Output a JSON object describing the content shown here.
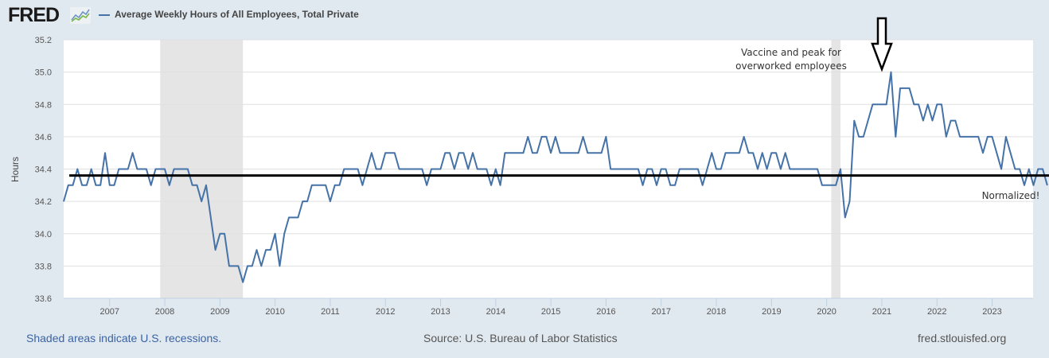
{
  "header": {
    "logo_text": "FRED",
    "logo_icon": "line-chart-icon",
    "legend_label": "Average Weekly Hours of All Employees, Total Private",
    "series_color": "#4572a7"
  },
  "footer": {
    "recession_note": "Shaded areas indicate U.S. recessions.",
    "source": "Source: U.S. Bureau of Labor Statistics",
    "site": "fred.stlouisfed.org"
  },
  "annotations": {
    "vaccine_line1": "Vaccine and peak for",
    "vaccine_line2": "overworked employees",
    "normalized": "Normalized!",
    "arrow_icon": "down-arrow-icon",
    "reference_line_value": 34.36
  },
  "chart_data": {
    "type": "line",
    "title": "Average Weekly Hours of All Employees, Total Private",
    "xlabel": "",
    "ylabel": "Hours",
    "ylim": [
      33.6,
      35.2
    ],
    "yticks": [
      "33.6",
      "33.8",
      "34.0",
      "34.2",
      "34.4",
      "34.6",
      "34.8",
      "35.0",
      "35.2"
    ],
    "xticks": [
      "2007",
      "2008",
      "2009",
      "2010",
      "2011",
      "2012",
      "2013",
      "2014",
      "2015",
      "2016",
      "2017",
      "2018",
      "2019",
      "2020",
      "2021",
      "2022",
      "2023"
    ],
    "grid": true,
    "start": "2006-03",
    "frequency": "monthly",
    "recessions": [
      [
        "2007-12",
        "2009-06"
      ],
      [
        "2020-02",
        "2020-04"
      ]
    ],
    "series": [
      {
        "name": "Average Weekly Hours of All Employees, Total Private",
        "values": [
          34.2,
          34.3,
          34.3,
          34.4,
          34.3,
          34.3,
          34.4,
          34.3,
          34.3,
          34.5,
          34.3,
          34.3,
          34.4,
          34.4,
          34.4,
          34.5,
          34.4,
          34.4,
          34.4,
          34.3,
          34.4,
          34.4,
          34.4,
          34.3,
          34.4,
          34.4,
          34.4,
          34.4,
          34.3,
          34.3,
          34.2,
          34.3,
          34.1,
          33.9,
          34.0,
          34.0,
          33.8,
          33.8,
          33.8,
          33.7,
          33.8,
          33.8,
          33.9,
          33.8,
          33.9,
          33.9,
          34.0,
          33.8,
          34.0,
          34.1,
          34.1,
          34.1,
          34.2,
          34.2,
          34.3,
          34.3,
          34.3,
          34.3,
          34.2,
          34.3,
          34.3,
          34.4,
          34.4,
          34.4,
          34.4,
          34.3,
          34.4,
          34.5,
          34.4,
          34.4,
          34.5,
          34.5,
          34.5,
          34.4,
          34.4,
          34.4,
          34.4,
          34.4,
          34.4,
          34.3,
          34.4,
          34.4,
          34.4,
          34.5,
          34.5,
          34.4,
          34.5,
          34.5,
          34.4,
          34.5,
          34.4,
          34.4,
          34.4,
          34.3,
          34.4,
          34.3,
          34.5,
          34.5,
          34.5,
          34.5,
          34.5,
          34.6,
          34.5,
          34.5,
          34.6,
          34.6,
          34.5,
          34.6,
          34.5,
          34.5,
          34.5,
          34.5,
          34.5,
          34.6,
          34.5,
          34.5,
          34.5,
          34.5,
          34.6,
          34.4,
          34.4,
          34.4,
          34.4,
          34.4,
          34.4,
          34.4,
          34.3,
          34.4,
          34.4,
          34.3,
          34.4,
          34.4,
          34.3,
          34.3,
          34.4,
          34.4,
          34.4,
          34.4,
          34.4,
          34.3,
          34.4,
          34.5,
          34.4,
          34.4,
          34.5,
          34.5,
          34.5,
          34.5,
          34.6,
          34.5,
          34.5,
          34.4,
          34.5,
          34.4,
          34.5,
          34.5,
          34.4,
          34.5,
          34.4,
          34.4,
          34.4,
          34.4,
          34.4,
          34.4,
          34.4,
          34.3,
          34.3,
          34.3,
          34.3,
          34.4,
          34.1,
          34.2,
          34.7,
          34.6,
          34.6,
          34.7,
          34.8,
          34.8,
          34.8,
          34.8,
          35.0,
          34.6,
          34.9,
          34.9,
          34.9,
          34.8,
          34.8,
          34.7,
          34.8,
          34.7,
          34.8,
          34.8,
          34.6,
          34.7,
          34.7,
          34.6,
          34.6,
          34.6,
          34.6,
          34.6,
          34.5,
          34.6,
          34.6,
          34.5,
          34.4,
          34.6,
          34.5,
          34.4,
          34.4,
          34.3,
          34.4,
          34.3,
          34.4,
          34.4,
          34.3
        ]
      }
    ]
  }
}
